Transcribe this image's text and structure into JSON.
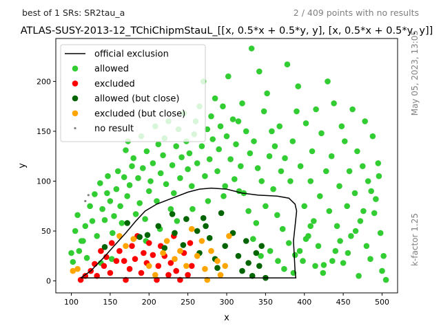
{
  "colors": {
    "allowed": "#32cd32",
    "excluded": "#ff0000",
    "allowed_close": "#006400",
    "excluded_close": "#ffa500",
    "no_result": "#808080",
    "exclusion_line": "#000000"
  },
  "chart_data": {
    "type": "scatter",
    "title": "ATLAS-SUSY-2013-12_TChiChipmStauL_[[x, 0.5*x + 0.5*y, y], [x, 0.5*x + 0.5*y, y]]",
    "top_left_text": "best of 1 SRs: SR2tau_a",
    "top_right_text": "2 / 409 points with no results",
    "side_date_text": "May 05, 2023, 13:05",
    "side_kfactor_text": "k-factor 1.25",
    "xlabel": "x",
    "ylabel": "y",
    "xlim": [
      80,
      520
    ],
    "ylim": [
      -12,
      243
    ],
    "xticks": [
      100,
      150,
      200,
      250,
      300,
      350,
      400,
      450,
      500
    ],
    "yticks": [
      0,
      50,
      100,
      150,
      200
    ],
    "legend": {
      "placement": "top-left",
      "entries": [
        {
          "key": "official",
          "label": "official exclusion"
        },
        {
          "key": "allowed",
          "label": "allowed"
        },
        {
          "key": "excluded",
          "label": "excluded"
        },
        {
          "key": "allowed_close",
          "label": "allowed (but close)"
        },
        {
          "key": "excluded_close",
          "label": "excluded (but close)"
        },
        {
          "key": "no_result",
          "label": "no result"
        }
      ]
    },
    "official_exclusion": [
      [
        112,
        3
      ],
      [
        125,
        10
      ],
      [
        140,
        22
      ],
      [
        155,
        35
      ],
      [
        170,
        48
      ],
      [
        183,
        60
      ],
      [
        195,
        70
      ],
      [
        210,
        77
      ],
      [
        230,
        83
      ],
      [
        250,
        89
      ],
      [
        265,
        92
      ],
      [
        280,
        93
      ],
      [
        300,
        92
      ],
      [
        320,
        88
      ],
      [
        340,
        86
      ],
      [
        365,
        85
      ],
      [
        380,
        83
      ],
      [
        388,
        77
      ],
      [
        390,
        70
      ],
      [
        388,
        55
      ],
      [
        386,
        40
      ],
      [
        387,
        25
      ],
      [
        388,
        10
      ],
      [
        389,
        3
      ],
      [
        112,
        3
      ]
    ],
    "points": {
      "allowed": [
        [
          100,
          28
        ],
        [
          102,
          19
        ],
        [
          105,
          50
        ],
        [
          108,
          66
        ],
        [
          110,
          30
        ],
        [
          113,
          40
        ],
        [
          118,
          55
        ],
        [
          120,
          23
        ],
        [
          124,
          75
        ],
        [
          127,
          60
        ],
        [
          130,
          87
        ],
        [
          133,
          45
        ],
        [
          137,
          98
        ],
        [
          140,
          72
        ],
        [
          143,
          61
        ],
        [
          146,
          88
        ],
        [
          150,
          80
        ],
        [
          153,
          48
        ],
        [
          155,
          65
        ],
        [
          158,
          92
        ],
        [
          160,
          110
        ],
        [
          163,
          75
        ],
        [
          165,
          58
        ],
        [
          168,
          104
        ],
        [
          170,
          131
        ],
        [
          172,
          85
        ],
        [
          175,
          96
        ],
        [
          178,
          115
        ],
        [
          180,
          123
        ],
        [
          183,
          67
        ],
        [
          186,
          103
        ],
        [
          188,
          78
        ],
        [
          190,
          145
        ],
        [
          192,
          113
        ],
        [
          195,
          62
        ],
        [
          197,
          130
        ],
        [
          200,
          90
        ],
        [
          202,
          100
        ],
        [
          205,
          118
        ],
        [
          208,
          155
        ],
        [
          210,
          80
        ],
        [
          212,
          137
        ],
        [
          215,
          108
        ],
        [
          218,
          126
        ],
        [
          220,
          143
        ],
        [
          222,
          97
        ],
        [
          225,
          160
        ],
        [
          228,
          72
        ],
        [
          230,
          116
        ],
        [
          232,
          88
        ],
        [
          235,
          135
        ],
        [
          238,
          152
        ],
        [
          240,
          103
        ],
        [
          242,
          124
        ],
        [
          245,
          168
        ],
        [
          248,
          140
        ],
        [
          250,
          112
        ],
        [
          252,
          128
        ],
        [
          255,
          95
        ],
        [
          258,
          147
        ],
        [
          260,
          160
        ],
        [
          262,
          118
        ],
        [
          265,
          175
        ],
        [
          268,
          135
        ],
        [
          270,
          200
        ],
        [
          272,
          105
        ],
        [
          275,
          152
        ],
        [
          278,
          122
        ],
        [
          280,
          165
        ],
        [
          282,
          142
        ],
        [
          285,
          183
        ],
        [
          288,
          110
        ],
        [
          290,
          132
        ],
        [
          292,
          155
        ],
        [
          295,
          175
        ],
        [
          298,
          95
        ],
        [
          300,
          145
        ],
        [
          302,
          205
        ],
        [
          305,
          122
        ],
        [
          308,
          162
        ],
        [
          310,
          102
        ],
        [
          312,
          137
        ],
        [
          315,
          160
        ],
        [
          318,
          115
        ],
        [
          320,
          178
        ],
        [
          322,
          88
        ],
        [
          325,
          150
        ],
        [
          328,
          70
        ],
        [
          330,
          128
        ],
        [
          332,
          233
        ],
        [
          335,
          140
        ],
        [
          338,
          58
        ],
        [
          340,
          113
        ],
        [
          342,
          210
        ],
        [
          345,
          100
        ],
        [
          348,
          170
        ],
        [
          350,
          75
        ],
        [
          352,
          188
        ],
        [
          355,
          125
        ],
        [
          358,
          150
        ],
        [
          360,
          92
        ],
        [
          362,
          135
        ],
        [
          365,
          66
        ],
        [
          368,
          155
        ],
        [
          370,
          110
        ],
        [
          372,
          52
        ],
        [
          375,
          123
        ],
        [
          378,
          217
        ],
        [
          380,
          38
        ],
        [
          382,
          100
        ],
        [
          385,
          140
        ],
        [
          388,
          26
        ],
        [
          390,
          170
        ],
        [
          392,
          195
        ],
        [
          395,
          115
        ],
        [
          398,
          20
        ],
        [
          400,
          75
        ],
        [
          402,
          158
        ],
        [
          405,
          45
        ],
        [
          408,
          100
        ],
        [
          410,
          130
        ],
        [
          412,
          60
        ],
        [
          415,
          172
        ],
        [
          418,
          35
        ],
        [
          420,
          85
        ],
        [
          422,
          148
        ],
        [
          425,
          16
        ],
        [
          428,
          110
        ],
        [
          430,
          200
        ],
        [
          432,
          70
        ],
        [
          435,
          125
        ],
        [
          438,
          178
        ],
        [
          440,
          30
        ],
        [
          442,
          55
        ],
        [
          445,
          95
        ],
        [
          448,
          155
        ],
        [
          450,
          18
        ],
        [
          452,
          140
        ],
        [
          455,
          75
        ],
        [
          458,
          110
        ],
        [
          460,
          45
        ],
        [
          462,
          172
        ],
        [
          465,
          88
        ],
        [
          468,
          130
        ],
        [
          470,
          5
        ],
        [
          472,
          60
        ],
        [
          475,
          115
        ],
        [
          478,
          160
        ],
        [
          480,
          35
        ],
        [
          482,
          100
        ],
        [
          485,
          22
        ],
        [
          488,
          145
        ],
        [
          490,
          68
        ],
        [
          492,
          82
        ],
        [
          495,
          118
        ],
        [
          498,
          48
        ],
        [
          500,
          10
        ],
        [
          502,
          25
        ],
        [
          505,
          1
        ],
        [
          115,
          40
        ],
        [
          138,
          18
        ],
        [
          147,
          105
        ],
        [
          152,
          22
        ],
        [
          173,
          140
        ],
        [
          196,
          40
        ],
        [
          214,
          52
        ],
        [
          236,
          60
        ],
        [
          256,
          72
        ],
        [
          276,
          80
        ],
        [
          296,
          85
        ],
        [
          316,
          90
        ],
        [
          334,
          42
        ],
        [
          344,
          25
        ],
        [
          356,
          30
        ],
        [
          366,
          20
        ],
        [
          374,
          12
        ],
        [
          386,
          8
        ],
        [
          394,
          30
        ],
        [
          402,
          42
        ],
        [
          408,
          55
        ],
        [
          414,
          15
        ],
        [
          424,
          8
        ],
        [
          436,
          20
        ],
        [
          446,
          40
        ],
        [
          456,
          28
        ],
        [
          466,
          50
        ],
        [
          476,
          70
        ],
        [
          486,
          90
        ],
        [
          496,
          105
        ]
      ],
      "excluded": [
        [
          112,
          1
        ],
        [
          118,
          5
        ],
        [
          125,
          10
        ],
        [
          130,
          17
        ],
        [
          133,
          5
        ],
        [
          138,
          30
        ],
        [
          142,
          15
        ],
        [
          145,
          24
        ],
        [
          150,
          8
        ],
        [
          152,
          38
        ],
        [
          158,
          20
        ],
        [
          162,
          30
        ],
        [
          168,
          20
        ],
        [
          170,
          1
        ],
        [
          175,
          12
        ],
        [
          178,
          35
        ],
        [
          182,
          22
        ],
        [
          185,
          45
        ],
        [
          190,
          8
        ],
        [
          193,
          28
        ],
        [
          197,
          18
        ],
        [
          200,
          38
        ],
        [
          205,
          26
        ],
        [
          210,
          1
        ],
        [
          212,
          15
        ],
        [
          215,
          35
        ],
        [
          220,
          25
        ],
        [
          225,
          6
        ],
        [
          228,
          18
        ],
        [
          232,
          45
        ],
        [
          235,
          10
        ],
        [
          240,
          1
        ],
        [
          245,
          28
        ],
        [
          250,
          6
        ],
        [
          253,
          38
        ],
        [
          255,
          15
        ]
      ],
      "allowed_close": [
        [
          143,
          34
        ],
        [
          172,
          58
        ],
        [
          188,
          44
        ],
        [
          198,
          46
        ],
        [
          212,
          55
        ],
        [
          220,
          33
        ],
        [
          230,
          67
        ],
        [
          233,
          48
        ],
        [
          244,
          36
        ],
        [
          248,
          62
        ],
        [
          262,
          50
        ],
        [
          265,
          28
        ],
        [
          270,
          63
        ],
        [
          273,
          55
        ],
        [
          278,
          43
        ],
        [
          285,
          22
        ],
        [
          288,
          13
        ],
        [
          293,
          68
        ],
        [
          298,
          35
        ],
        [
          308,
          48
        ],
        [
          315,
          25
        ],
        [
          320,
          10
        ],
        [
          325,
          40
        ],
        [
          328,
          18
        ],
        [
          333,
          5
        ],
        [
          338,
          28
        ],
        [
          342,
          15
        ],
        [
          345,
          35
        ],
        [
          350,
          3
        ]
      ],
      "excluded_close": [
        [
          102,
          10
        ],
        [
          108,
          12
        ],
        [
          162,
          45
        ],
        [
          170,
          35
        ],
        [
          180,
          42
        ],
        [
          200,
          15
        ],
        [
          208,
          6
        ],
        [
          218,
          28
        ],
        [
          223,
          40
        ],
        [
          233,
          22
        ],
        [
          240,
          30
        ],
        [
          248,
          15
        ],
        [
          255,
          52
        ],
        [
          262,
          25
        ],
        [
          268,
          40
        ],
        [
          272,
          12
        ],
        [
          275,
          1
        ],
        [
          280,
          30
        ],
        [
          288,
          20
        ],
        [
          292,
          6
        ],
        [
          298,
          15
        ],
        [
          303,
          45
        ]
      ],
      "no_result": [
        [
          118,
          80
        ],
        [
          122,
          86
        ]
      ]
    }
  }
}
